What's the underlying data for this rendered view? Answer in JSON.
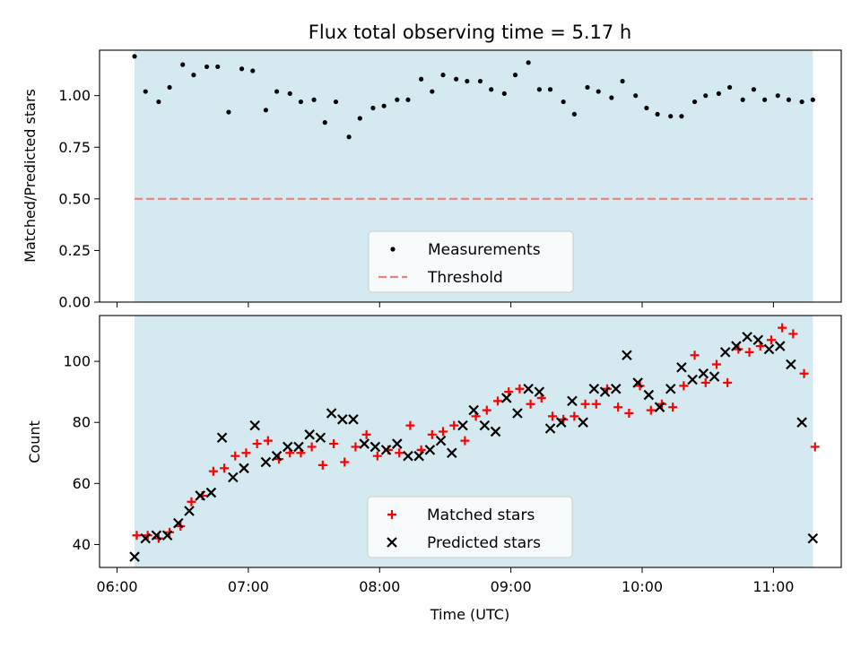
{
  "chart_data": [
    {
      "type": "scatter",
      "title": "Flux total observing time = 5.17 h",
      "ylabel": "Matched/Predicted stars",
      "xlabel": "",
      "ylim": [
        0.0,
        1.22
      ],
      "yticks": [
        "0.00",
        "0.25",
        "0.50",
        "0.75",
        "1.00"
      ],
      "ytick_values": [
        0.0,
        0.25,
        0.5,
        0.75,
        1.0
      ],
      "xlim": [
        "05:52",
        "11:31"
      ],
      "shaded_span": [
        "06:08",
        "11:18"
      ],
      "shade_color": "#d4eaf0",
      "legend": {
        "placement": "lower-center",
        "entries": [
          "Measurements",
          "Threshold"
        ]
      },
      "threshold": {
        "name": "Threshold",
        "value": 0.5,
        "color": "#f08080"
      },
      "series": [
        {
          "name": "Measurements",
          "color": "#000000",
          "x": [
            "06:08",
            "06:13",
            "06:19",
            "06:24",
            "06:30",
            "06:35",
            "06:41",
            "06:46",
            "06:51",
            "06:57",
            "07:02",
            "07:08",
            "07:13",
            "07:19",
            "07:24",
            "07:30",
            "07:35",
            "07:40",
            "07:46",
            "07:51",
            "07:57",
            "08:02",
            "08:08",
            "08:13",
            "08:19",
            "08:24",
            "08:29",
            "08:35",
            "08:40",
            "08:46",
            "08:51",
            "08:57",
            "09:02",
            "09:08",
            "09:13",
            "09:18",
            "09:24",
            "09:29",
            "09:35",
            "09:40",
            "09:46",
            "09:51",
            "09:57",
            "10:02",
            "10:07",
            "10:13",
            "10:18",
            "10:24",
            "10:29",
            "10:35",
            "10:40",
            "10:46",
            "10:51",
            "10:56",
            "11:02",
            "11:07",
            "11:13",
            "11:18"
          ],
          "y": [
            1.19,
            1.02,
            0.97,
            1.04,
            1.15,
            1.1,
            1.14,
            1.14,
            0.92,
            1.13,
            1.12,
            0.93,
            1.02,
            1.01,
            0.97,
            0.98,
            0.87,
            0.97,
            0.8,
            0.89,
            0.94,
            0.95,
            0.98,
            0.98,
            1.08,
            1.02,
            1.1,
            1.08,
            1.07,
            1.07,
            1.03,
            1.01,
            1.1,
            1.16,
            1.03,
            1.03,
            0.97,
            0.91,
            1.04,
            1.02,
            0.99,
            1.07,
            1.0,
            0.94,
            0.91,
            0.9,
            0.9,
            0.97,
            1.0,
            1.01,
            1.04,
            0.98,
            1.03,
            0.98,
            1.0,
            0.98,
            0.97,
            0.98
          ]
        }
      ]
    },
    {
      "type": "scatter",
      "title": "",
      "ylabel": "Count",
      "xlabel": "Time (UTC)",
      "ylim": [
        32.5,
        115
      ],
      "yticks": [
        "40",
        "60",
        "80",
        "100"
      ],
      "ytick_values": [
        40,
        60,
        80,
        100
      ],
      "xlim": [
        "05:52",
        "11:31"
      ],
      "xticks": [
        "06:00",
        "07:00",
        "08:00",
        "09:00",
        "10:00",
        "11:00"
      ],
      "shaded_span": [
        "06:08",
        "11:18"
      ],
      "legend": {
        "placement": "lower-center",
        "entries": [
          "Matched stars",
          "Predicted stars"
        ]
      },
      "series": [
        {
          "name": "Matched stars",
          "marker": "plus",
          "color": "#ff0000",
          "x": [
            "06:09",
            "06:14",
            "06:19",
            "06:24",
            "06:29",
            "06:34",
            "06:39",
            "06:44",
            "06:49",
            "06:54",
            "06:59",
            "07:04",
            "07:09",
            "07:14",
            "07:19",
            "07:24",
            "07:29",
            "07:34",
            "07:39",
            "07:44",
            "07:49",
            "07:54",
            "07:59",
            "08:04",
            "08:09",
            "08:14",
            "08:19",
            "08:24",
            "08:29",
            "08:34",
            "08:39",
            "08:44",
            "08:49",
            "08:54",
            "08:59",
            "09:04",
            "09:09",
            "09:14",
            "09:19",
            "09:24",
            "09:29",
            "09:34",
            "09:39",
            "09:44",
            "09:49",
            "09:54",
            "09:59",
            "10:04",
            "10:09",
            "10:14",
            "10:19",
            "10:24",
            "10:29",
            "10:34",
            "10:39",
            "10:44",
            "10:49",
            "10:54",
            "10:59",
            "11:04",
            "11:09",
            "11:14",
            "11:19"
          ],
          "y": [
            43,
            43,
            42,
            44,
            46,
            54,
            56,
            64,
            65,
            69,
            70,
            73,
            74,
            68,
            70,
            70,
            72,
            66,
            73,
            67,
            72,
            76,
            69,
            71,
            70,
            79,
            71,
            76,
            77,
            79,
            74,
            82,
            84,
            87,
            90,
            91,
            86,
            88,
            82,
            81,
            82,
            86,
            86,
            91,
            85,
            83,
            92,
            84,
            86,
            85,
            92,
            102,
            93,
            99,
            93,
            104,
            103,
            105,
            107,
            111,
            109,
            96,
            72
          ]
        },
        {
          "name": "Predicted stars",
          "marker": "x",
          "color": "#000000",
          "x": [
            "06:08",
            "06:13",
            "06:18",
            "06:23",
            "06:28",
            "06:33",
            "06:38",
            "06:43",
            "06:48",
            "06:53",
            "06:58",
            "07:03",
            "07:08",
            "07:13",
            "07:18",
            "07:23",
            "07:28",
            "07:33",
            "07:38",
            "07:43",
            "07:48",
            "07:53",
            "07:58",
            "08:03",
            "08:08",
            "08:13",
            "08:18",
            "08:23",
            "08:28",
            "08:33",
            "08:38",
            "08:43",
            "08:48",
            "08:53",
            "08:58",
            "09:03",
            "09:08",
            "09:13",
            "09:18",
            "09:23",
            "09:28",
            "09:33",
            "09:38",
            "09:43",
            "09:48",
            "09:53",
            "09:58",
            "10:03",
            "10:08",
            "10:13",
            "10:18",
            "10:23",
            "10:28",
            "10:33",
            "10:38",
            "10:43",
            "10:48",
            "10:53",
            "10:58",
            "11:03",
            "11:08",
            "11:13",
            "11:18"
          ],
          "y": [
            36,
            42,
            43,
            43,
            47,
            51,
            56,
            57,
            75,
            62,
            65,
            79,
            67,
            69,
            72,
            72,
            76,
            75,
            83,
            81,
            81,
            73,
            72,
            71,
            73,
            69,
            69,
            71,
            74,
            70,
            79,
            84,
            79,
            77,
            88,
            83,
            91,
            90,
            78,
            80,
            87,
            80,
            91,
            90,
            91,
            102,
            93,
            89,
            85,
            91,
            98,
            94,
            96,
            95,
            103,
            105,
            108,
            107,
            104,
            105,
            99,
            80,
            42
          ]
        }
      ]
    }
  ]
}
